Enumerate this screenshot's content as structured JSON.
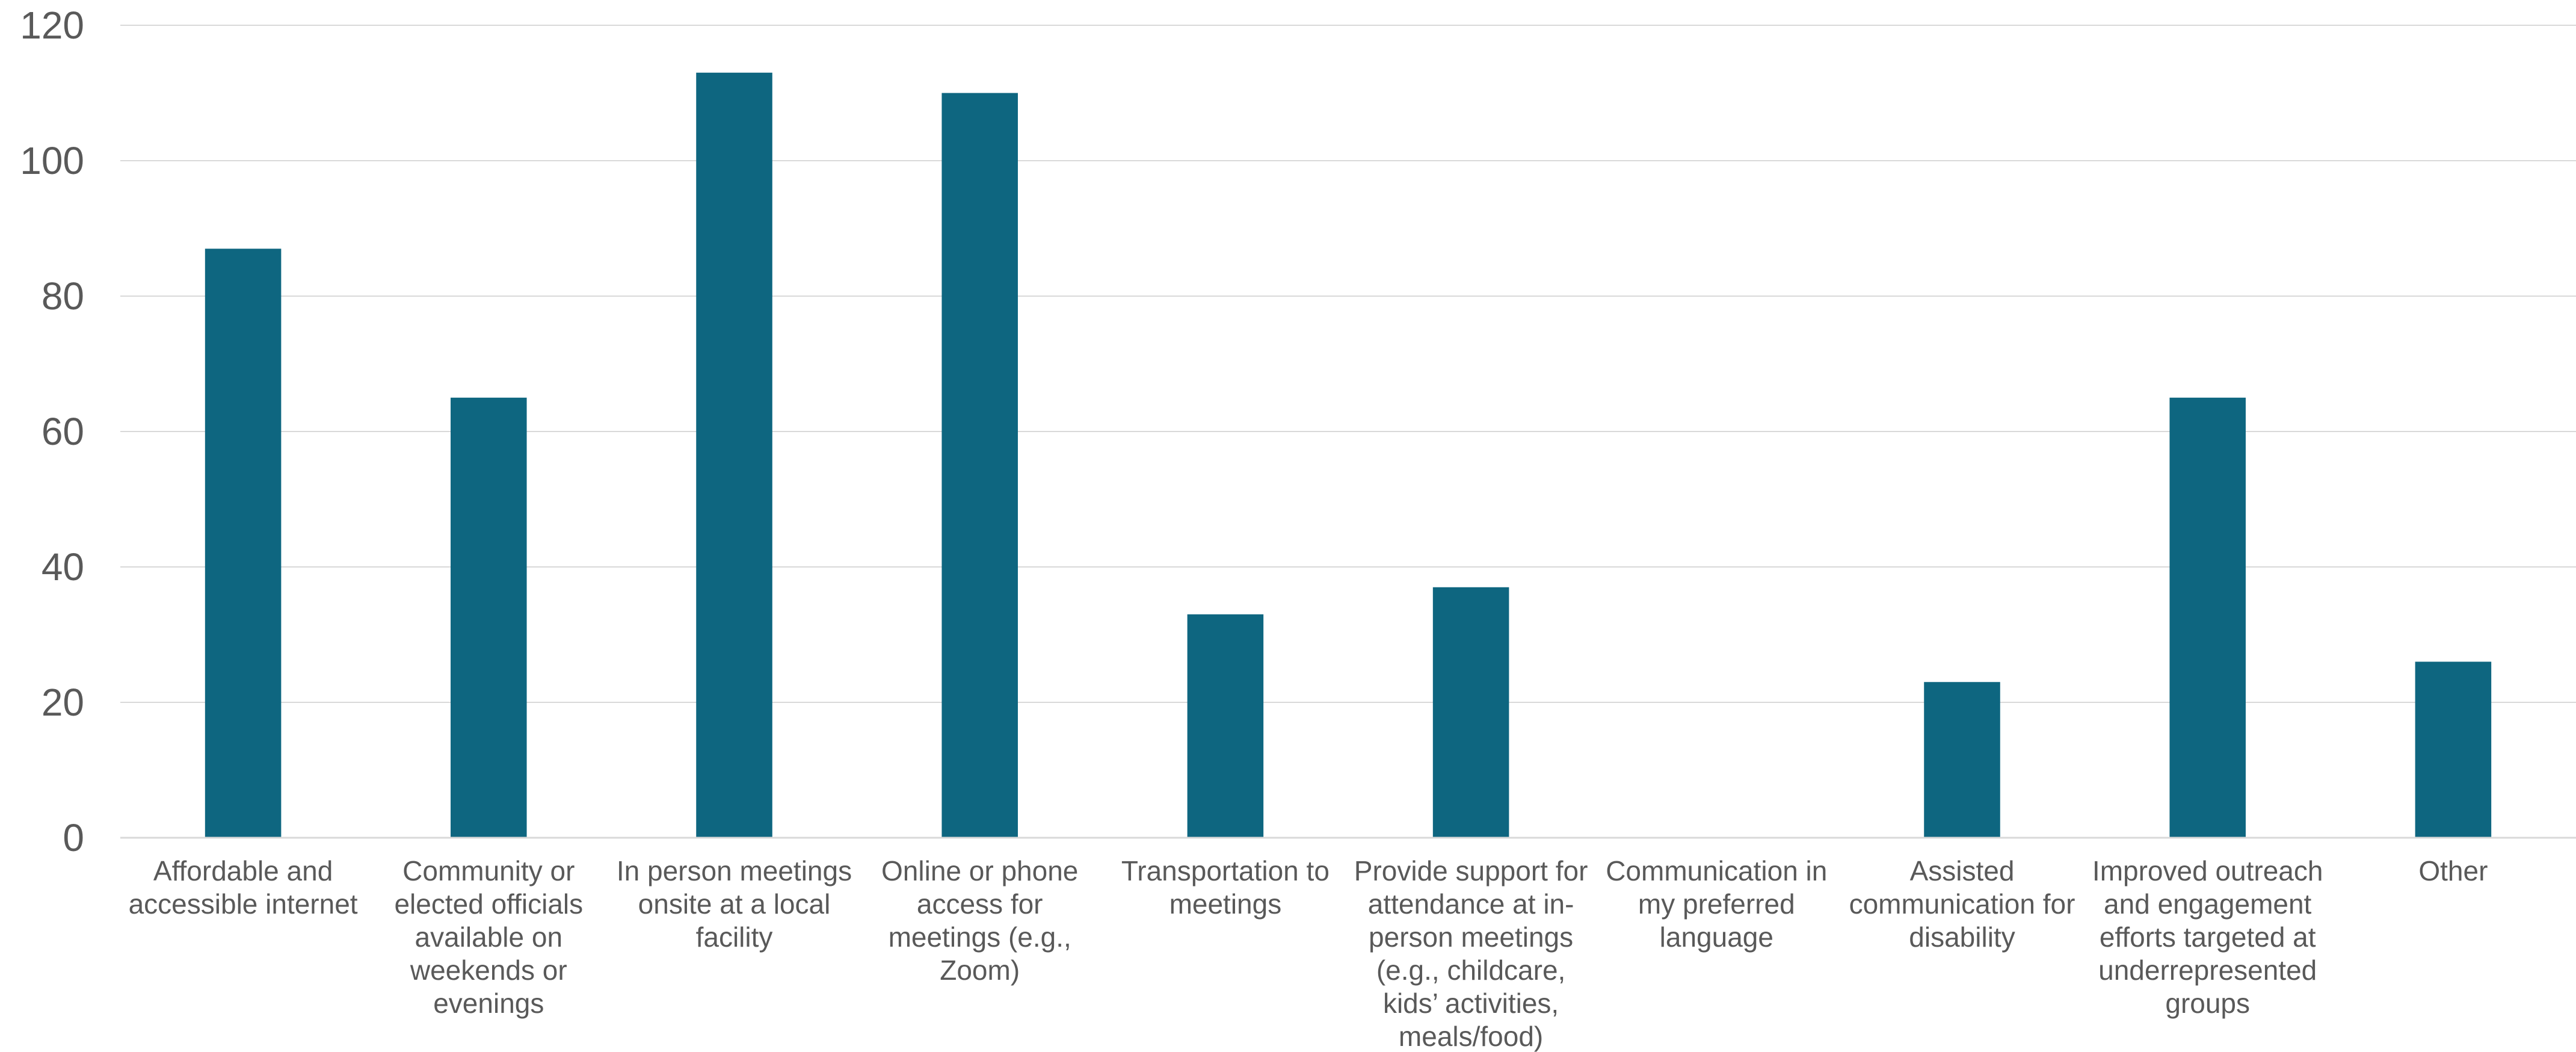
{
  "chart_data": {
    "type": "bar",
    "title": "",
    "xlabel": "",
    "ylabel": "",
    "ylim": [
      0,
      120
    ],
    "yticks": [
      0,
      20,
      40,
      60,
      80,
      100,
      120
    ],
    "grid": true,
    "bar_color": "#0e6680",
    "categories": [
      [
        "Affordable and",
        "accessible internet"
      ],
      [
        "Community or",
        "elected officials",
        "available on",
        "weekends or",
        "evenings"
      ],
      [
        "In person meetings",
        "onsite at a local",
        "facility"
      ],
      [
        "Online or phone",
        "access for",
        "meetings (e.g.,",
        "Zoom)"
      ],
      [
        "Transportation to",
        "meetings"
      ],
      [
        "Provide support for",
        "attendance at in-",
        "person meetings",
        "(e.g., childcare,",
        "kids’ activities,",
        "meals/food)"
      ],
      [
        "Communication in",
        "my preferred",
        "language"
      ],
      [
        "Assisted",
        "communication for",
        "disability"
      ],
      [
        "Improved outreach",
        "and engagement",
        "efforts targeted at",
        "underrepresented",
        "groups"
      ],
      [
        "Other"
      ]
    ],
    "values": [
      87,
      65,
      113,
      110,
      33,
      37,
      0,
      23,
      65,
      26
    ]
  }
}
